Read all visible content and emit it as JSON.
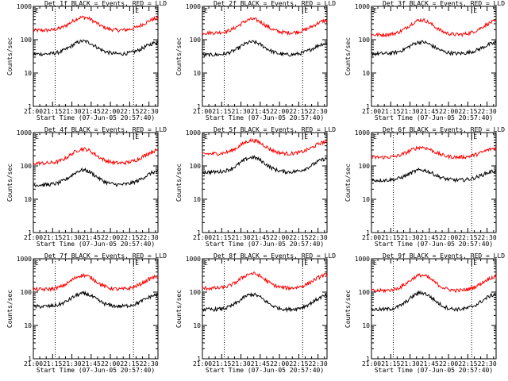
{
  "chart_data": {
    "type": "line",
    "figure_layout": "3x3 grid of detector panels",
    "xlabel": "Start Time (07-Jun-05 20:57:40)",
    "ylabel": "Counts/sec",
    "x_ticks": [
      "21:00",
      "21:15",
      "21:30",
      "21:45",
      "22:00",
      "22:15",
      "22:30"
    ],
    "x_tick_minutes": [
      0,
      15,
      30,
      45,
      60,
      75,
      90
    ],
    "x_range_minutes": [
      0,
      97
    ],
    "y_scale": "log",
    "y_ticks": [
      "1",
      "10",
      "100",
      "1000"
    ],
    "y_tick_values": [
      1,
      10,
      100,
      1000
    ],
    "ylim": [
      1,
      1000
    ],
    "event_markers": [
      {
        "label": "E",
        "minute": 0
      },
      {
        "label": "E",
        "minute": 78
      }
    ],
    "dotted_line_minutes": [
      17,
      78
    ],
    "series_colors": {
      "events": "#000000",
      "lld": "#ff0000"
    },
    "panels": [
      {
        "title": "Det 1f BLACK = Events, RED = LLD",
        "dotted_lines": true,
        "series": [
          {
            "name": "Events",
            "color": "#000000",
            "min": 37,
            "max": 90
          },
          {
            "name": "LLD",
            "color": "#ff0000",
            "min": 190,
            "max": 470
          }
        ]
      },
      {
        "title": "Det 2f BLACK = Events, RED = LLD",
        "dotted_lines": true,
        "series": [
          {
            "name": "Events",
            "color": "#000000",
            "min": 35,
            "max": 85
          },
          {
            "name": "LLD",
            "color": "#ff0000",
            "min": 160,
            "max": 410
          }
        ]
      },
      {
        "title": "Det 3f BLACK = Events, RED = LLD",
        "dotted_lines": false,
        "series": [
          {
            "name": "Events",
            "color": "#000000",
            "min": 38,
            "max": 85
          },
          {
            "name": "LLD",
            "color": "#ff0000",
            "min": 140,
            "max": 390
          }
        ]
      },
      {
        "title": "Det 4f BLACK = Events, RED = LLD",
        "dotted_lines": false,
        "series": [
          {
            "name": "Events",
            "color": "#000000",
            "min": 27,
            "max": 75
          },
          {
            "name": "LLD",
            "color": "#ff0000",
            "min": 120,
            "max": 320
          }
        ]
      },
      {
        "title": "Det 5f BLACK = Events, RED = LLD",
        "dotted_lines": false,
        "series": [
          {
            "name": "Events",
            "color": "#000000",
            "min": 65,
            "max": 180
          },
          {
            "name": "LLD",
            "color": "#ff0000",
            "min": 230,
            "max": 580
          }
        ]
      },
      {
        "title": "Det 6f BLACK = Events, RED = LLD",
        "dotted_lines": true,
        "series": [
          {
            "name": "Events",
            "color": "#000000",
            "min": 37,
            "max": 75
          },
          {
            "name": "LLD",
            "color": "#ff0000",
            "min": 180,
            "max": 360
          }
        ]
      },
      {
        "title": "Det 7f BLACK = Events, RED = LLD",
        "dotted_lines": true,
        "series": [
          {
            "name": "Events",
            "color": "#000000",
            "min": 37,
            "max": 90
          },
          {
            "name": "LLD",
            "color": "#ff0000",
            "min": 120,
            "max": 320
          }
        ]
      },
      {
        "title": "Det 8f BLACK = Events, RED = LLD",
        "dotted_lines": true,
        "series": [
          {
            "name": "Events",
            "color": "#000000",
            "min": 30,
            "max": 85
          },
          {
            "name": "LLD",
            "color": "#ff0000",
            "min": 130,
            "max": 360
          }
        ]
      },
      {
        "title": "Det 9f BLACK = Events, RED = LLD",
        "dotted_lines": true,
        "series": [
          {
            "name": "Events",
            "color": "#000000",
            "min": 30,
            "max": 95
          },
          {
            "name": "LLD",
            "color": "#ff0000",
            "min": 110,
            "max": 320
          }
        ]
      }
    ]
  }
}
